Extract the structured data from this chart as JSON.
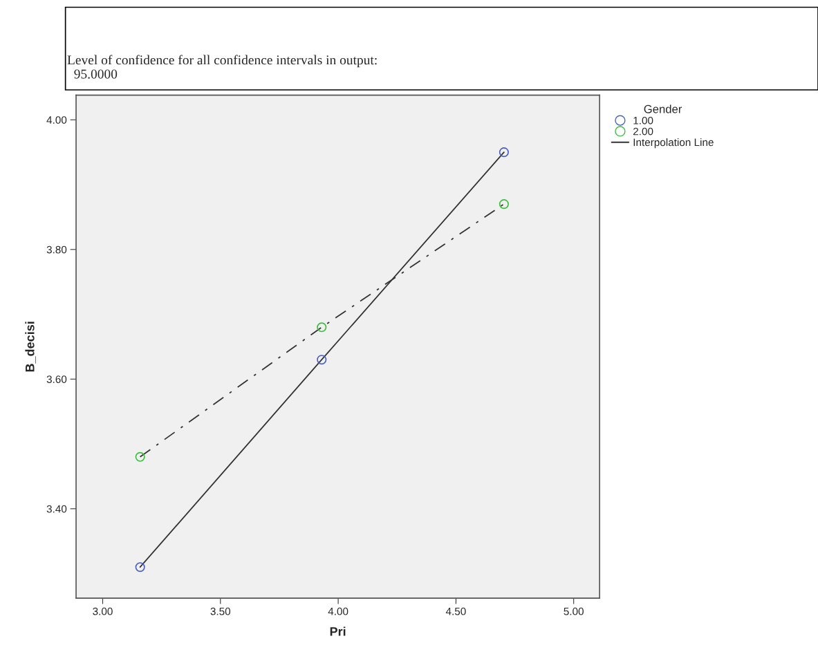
{
  "chart_data": {
    "type": "scatter",
    "xlabel": "Pri",
    "ylabel": "B_decisi",
    "legend_title": "Gender",
    "legend": "right",
    "grid": false,
    "marker": "circle",
    "annotations": [
      "Level of confidence for all confidence intervals in output:\n  95.0000"
    ],
    "xlim": [
      2.887,
      5.11
    ],
    "xticks": [
      {
        "value": 3,
        "label": "3.00"
      },
      {
        "value": 3.5,
        "label": "3.50"
      },
      {
        "value": 4,
        "label": "4.00"
      },
      {
        "value": 4.5,
        "label": "4.50"
      },
      {
        "value": 5,
        "label": "5.00"
      }
    ],
    "ylim": [
      3.262,
      4.038
    ],
    "yticks": [
      {
        "value": 3.4,
        "label": "3.40"
      },
      {
        "value": 3.6,
        "label": "3.60"
      },
      {
        "value": 3.8,
        "label": "3.80"
      },
      {
        "value": 4,
        "label": "4.00"
      }
    ],
    "series": [
      {
        "type": "line",
        "name": "Interpolation Line",
        "color": "#333333",
        "line_style": "solid",
        "marker": "none",
        "x": [
          3.159,
          3.93,
          4.704
        ],
        "values": [
          3.31,
          3.63,
          3.95
        ]
      },
      {
        "type": "line",
        "color": "#333333",
        "line_style": "dashdot",
        "marker": "none",
        "x": [
          3.159,
          3.93,
          4.704
        ],
        "values": [
          3.48,
          3.68,
          3.87
        ]
      },
      {
        "name": "1.00",
        "color": "#4a5fc1",
        "x": [
          3.159,
          3.93,
          4.704
        ],
        "values": [
          3.31,
          3.63,
          3.95
        ]
      },
      {
        "name": "2.00",
        "color": "#3cbf3c",
        "x": [
          3.159,
          3.93,
          4.704
        ],
        "values": [
          3.48,
          3.68,
          3.87
        ]
      }
    ]
  }
}
